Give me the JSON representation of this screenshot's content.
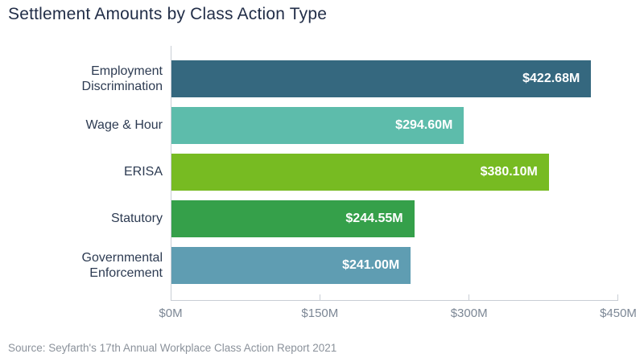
{
  "title": "Settlement Amounts by Class Action Type",
  "source": "Source: Seyfarth's 17th Annual Workplace Class Action Report 2021",
  "colors": {
    "title_text": "#222e48",
    "category_text": "#2d3b52",
    "axis_line": "#c9ced5",
    "axis_tick_text": "#7c8795",
    "value_text": "#ffffff",
    "source_text": "#8b929b",
    "background": "#ffffff"
  },
  "chart_data": {
    "type": "bar",
    "orientation": "horizontal",
    "title": "Settlement Amounts by Class Action Type",
    "xlabel": "",
    "ylabel": "",
    "xlim": [
      0,
      450
    ],
    "grid": false,
    "legend": false,
    "categories": [
      "Employment Discrimination",
      "Wage & Hour",
      "ERISA",
      "Statutory",
      "Governmental Enforcement"
    ],
    "values": [
      422.68,
      294.6,
      380.1,
      244.55,
      241.0
    ],
    "value_labels": [
      "$422.68M",
      "$294.60M",
      "$380.10M",
      "$244.55M",
      "$241.00M"
    ],
    "bar_colors": [
      "#35687f",
      "#5dbcab",
      "#77bb22",
      "#35a04a",
      "#5f9db2"
    ],
    "x_tick_values": [
      0,
      150,
      300,
      450
    ],
    "x_tick_labels": [
      "$0M",
      "$150M",
      "$300M",
      "$450M"
    ],
    "source": "Source: Seyfarth's 17th Annual Workplace Class Action Report 2021"
  }
}
